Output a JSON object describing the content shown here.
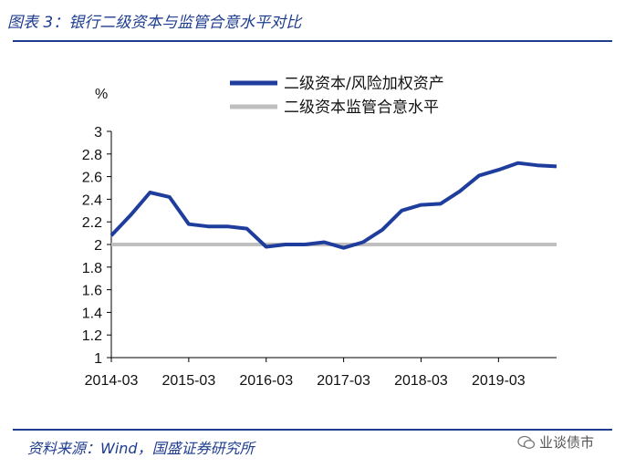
{
  "figure": {
    "title": "图表 3：银行二级资本与监管合意水平对比",
    "source": "资料来源：Wind，国盛证券研究所",
    "watermark": "业谈债市",
    "watermark_icon": "wechat-icon"
  },
  "chart_data": {
    "type": "line",
    "title": "",
    "xlabel": "",
    "ylabel": "%",
    "ylim": [
      1,
      3
    ],
    "yticks": [
      "1",
      "1.2",
      "1.4",
      "1.6",
      "1.8",
      "2",
      "2.2",
      "2.4",
      "2.6",
      "2.8",
      "3"
    ],
    "categories": [
      "2014-03",
      "2014-06",
      "2014-09",
      "2014-12",
      "2015-03",
      "2015-06",
      "2015-09",
      "2015-12",
      "2016-03",
      "2016-06",
      "2016-09",
      "2016-12",
      "2017-03",
      "2017-06",
      "2017-09",
      "2017-12",
      "2018-03",
      "2018-06",
      "2018-09",
      "2018-12",
      "2019-03",
      "2019-06",
      "2019-09",
      "2019-12"
    ],
    "xtick_labels": [
      "2014-03",
      "2015-03",
      "2016-03",
      "2017-03",
      "2018-03",
      "2019-03"
    ],
    "grid": false,
    "legend_position": "top-right",
    "series": [
      {
        "name": "二级资本/风险加权资产",
        "color": "#1f3d9c",
        "values": [
          2.08,
          2.26,
          2.46,
          2.42,
          2.18,
          2.16,
          2.16,
          2.14,
          1.98,
          2.0,
          2.0,
          2.02,
          1.97,
          2.02,
          2.13,
          2.3,
          2.35,
          2.36,
          2.47,
          2.61,
          2.66,
          2.72,
          2.7,
          2.69
        ]
      },
      {
        "name": "二级资本监管合意水平",
        "color": "#bfbfbf",
        "values": [
          2,
          2,
          2,
          2,
          2,
          2,
          2,
          2,
          2,
          2,
          2,
          2,
          2,
          2,
          2,
          2,
          2,
          2,
          2,
          2,
          2,
          2,
          2,
          2
        ]
      }
    ]
  }
}
